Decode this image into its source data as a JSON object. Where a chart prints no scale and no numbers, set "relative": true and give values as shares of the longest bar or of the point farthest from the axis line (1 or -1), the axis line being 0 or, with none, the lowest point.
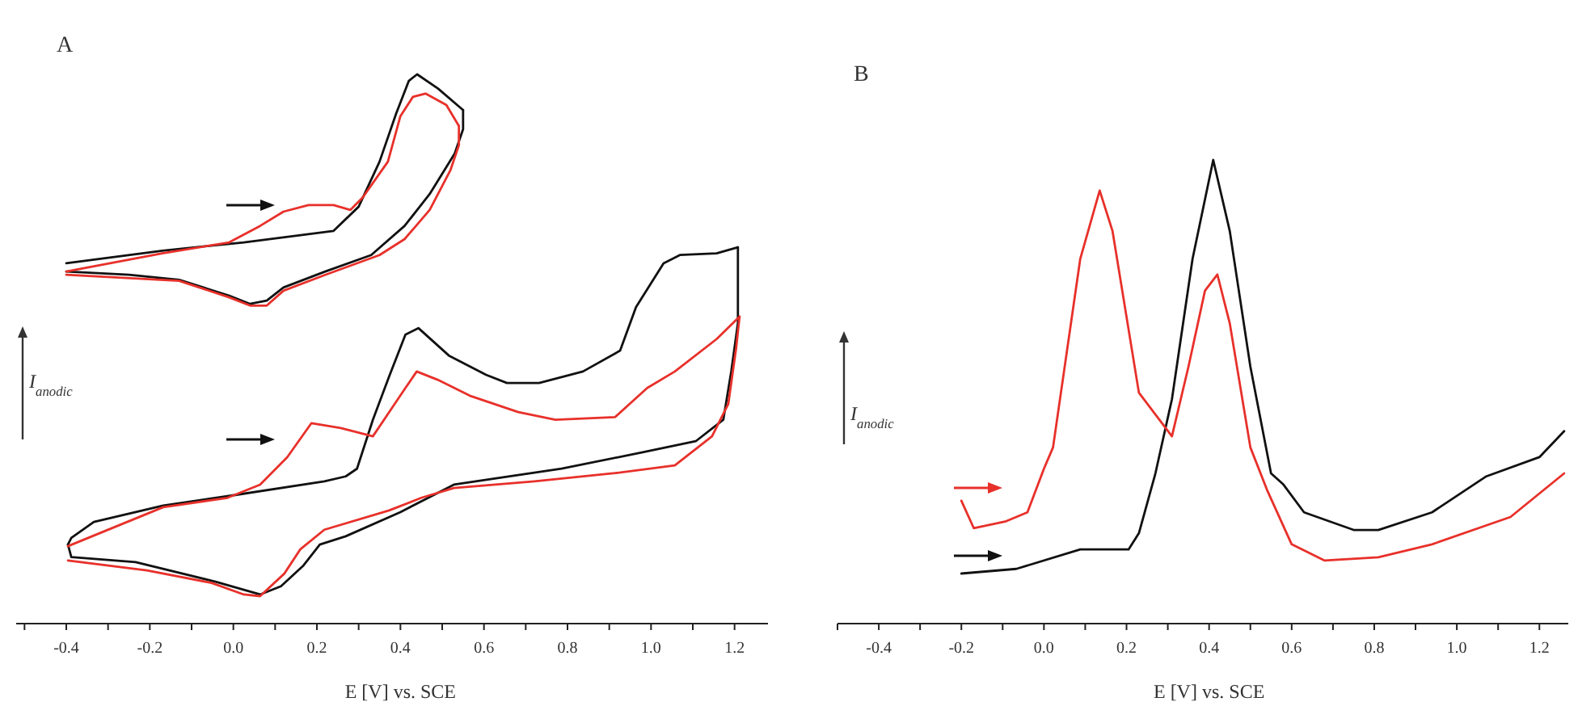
{
  "chart_data": [
    {
      "type": "line",
      "title": "A",
      "xlabel": "E [V] vs. SCE",
      "ylabel": "I$_{anodic}$",
      "relative": true,
      "xlim": [
        -0.52,
        1.28
      ],
      "xticks": [
        {
          "value": -0.5,
          "label": null
        },
        -0.4,
        {
          "value": -0.3,
          "label": null
        },
        -0.2,
        {
          "value": -0.1,
          "label": null
        },
        {
          "value": 0,
          "label": "0.0"
        },
        {
          "value": 0.1,
          "label": null
        },
        0.2,
        {
          "value": 0.3,
          "label": null
        },
        0.4,
        {
          "value": 0.5,
          "label": null
        },
        0.6,
        {
          "value": 0.7,
          "label": null
        },
        0.8,
        {
          "value": 0.9,
          "label": null
        },
        {
          "value": 1,
          "label": "1.0"
        },
        {
          "value": 1.1,
          "label": null
        },
        1.2
      ],
      "series": [
        {
          "color": "#111111",
          "x": [
            -0.4,
            -0.17,
            0.025,
            0.24,
            0.3,
            0.35,
            0.39,
            0.42,
            0.44,
            0.49,
            0.55
          ],
          "values": [
            0.656,
            0.679,
            0.694,
            0.715,
            0.759,
            0.841,
            0.929,
            0.988,
            1.0,
            0.974,
            0.935
          ]
        },
        {
          "color": "#111111",
          "x": [
            -0.4,
            -0.25,
            -0.13,
            -0.01,
            0.04,
            0.08,
            0.12,
            0.22,
            0.33,
            0.41,
            0.47,
            0.53,
            0.55,
            0.55
          ],
          "values": [
            0.641,
            0.635,
            0.626,
            0.597,
            0.582,
            0.588,
            0.612,
            0.641,
            0.671,
            0.724,
            0.782,
            0.856,
            0.9,
            0.935
          ]
        },
        {
          "color": "#e8302a",
          "x": [
            -0.4,
            -0.17,
            -0.01,
            0.064,
            0.12,
            0.18,
            0.24,
            0.28,
            0.31,
            0.37,
            0.4,
            0.43,
            0.46,
            0.51,
            0.54
          ],
          "values": [
            0.641,
            0.674,
            0.694,
            0.724,
            0.75,
            0.762,
            0.762,
            0.753,
            0.776,
            0.841,
            0.924,
            0.959,
            0.965,
            0.944,
            0.906
          ]
        },
        {
          "color": "#e8302a",
          "x": [
            -0.4,
            -0.13,
            -0.01,
            0.04,
            0.08,
            0.12,
            0.22,
            0.35,
            0.41,
            0.47,
            0.52,
            0.54,
            0.54
          ],
          "values": [
            0.635,
            0.624,
            0.594,
            0.579,
            0.579,
            0.606,
            0.635,
            0.671,
            0.7,
            0.753,
            0.826,
            0.871,
            0.906
          ]
        },
        {
          "color": "#111111",
          "x": [
            -0.396,
            -0.388,
            -0.334,
            -0.168,
            -0.014,
            0.218,
            0.269,
            0.296,
            0.334,
            0.373,
            0.412,
            0.443,
            0.516,
            0.605,
            0.655,
            0.732,
            0.837,
            0.926,
            0.964,
            1.03,
            1.069,
            1.157,
            1.208
          ],
          "values": [
            0.144,
            0.156,
            0.185,
            0.215,
            0.232,
            0.259,
            0.268,
            0.282,
            0.371,
            0.45,
            0.526,
            0.538,
            0.488,
            0.453,
            0.438,
            0.438,
            0.459,
            0.497,
            0.576,
            0.656,
            0.671,
            0.674,
            0.685
          ]
        },
        {
          "color": "#111111",
          "x": [
            -0.396,
            -0.388,
            -0.234,
            -0.041,
            0.064,
            0.114,
            0.168,
            0.207,
            0.269,
            0.4,
            0.528,
            0.786,
            0.98,
            1.107,
            1.173,
            1.192,
            1.208,
            1.208
          ],
          "values": [
            0.144,
            0.121,
            0.112,
            0.076,
            0.053,
            0.068,
            0.106,
            0.144,
            0.159,
            0.203,
            0.253,
            0.282,
            0.312,
            0.332,
            0.371,
            0.459,
            0.547,
            0.685
          ]
        },
        {
          "color": "#e8302a",
          "x": [
            -0.396,
            -0.168,
            -0.014,
            0.064,
            0.129,
            0.187,
            0.257,
            0.334,
            0.373,
            0.412,
            0.439,
            0.489,
            0.566,
            0.682,
            0.771,
            0.914,
            0.991,
            1.057,
            1.157,
            1.196,
            1.212
          ],
          "values": [
            0.141,
            0.212,
            0.229,
            0.253,
            0.303,
            0.365,
            0.356,
            0.341,
            0.385,
            0.429,
            0.459,
            0.444,
            0.415,
            0.385,
            0.371,
            0.376,
            0.429,
            0.459,
            0.518,
            0.547,
            0.559
          ]
        },
        {
          "color": "#e8302a",
          "x": [
            -0.396,
            -0.207,
            -0.052,
            0.025,
            0.064,
            0.122,
            0.16,
            0.218,
            0.373,
            0.45,
            0.528,
            0.721,
            0.914,
            1.057,
            1.146,
            1.185,
            1.204,
            1.212
          ],
          "values": [
            0.115,
            0.097,
            0.074,
            0.053,
            0.05,
            0.091,
            0.135,
            0.171,
            0.206,
            0.229,
            0.247,
            0.259,
            0.274,
            0.288,
            0.341,
            0.4,
            0.503,
            0.559
          ]
        }
      ]
    },
    {
      "type": "line",
      "title": "B",
      "xlabel": "E [V] vs. SCE",
      "ylabel": "I$_{anodic}$",
      "relative": true,
      "xlim": [
        -0.5,
        1.27
      ],
      "xticks": [
        {
          "value": -0.5,
          "label": null
        },
        -0.4,
        {
          "value": -0.3,
          "label": null
        },
        -0.2,
        {
          "value": -0.1,
          "label": null
        },
        {
          "value": 0,
          "label": "0.0"
        },
        {
          "value": 0.1,
          "label": null
        },
        0.2,
        {
          "value": 0.3,
          "label": null
        },
        0.4,
        {
          "value": 0.5,
          "label": null
        },
        0.6,
        {
          "value": 0.7,
          "label": null
        },
        0.8,
        {
          "value": 0.9,
          "label": null
        },
        {
          "value": 1,
          "label": "1.0"
        },
        {
          "value": 1.1,
          "label": null
        },
        1.2
      ],
      "series": [
        {
          "color": "#111111",
          "x": [
            -0.2,
            -0.067,
            0.088,
            0.205,
            0.23,
            0.27,
            0.31,
            0.36,
            0.41,
            0.45,
            0.5,
            0.55,
            0.58,
            0.63,
            0.75,
            0.81,
            0.94,
            1.07,
            1.2,
            1.26
          ],
          "values": [
            0.108,
            0.118,
            0.16,
            0.16,
            0.195,
            0.324,
            0.484,
            0.787,
            1.0,
            0.847,
            0.554,
            0.324,
            0.3,
            0.24,
            0.202,
            0.202,
            0.24,
            0.317,
            0.359,
            0.415
          ]
        },
        {
          "color": "#e8302a",
          "x": [
            -0.2,
            -0.17,
            -0.094,
            -0.04,
            0.0,
            0.022,
            0.088,
            0.135,
            0.166,
            0.23,
            0.31,
            0.35,
            0.39,
            0.42,
            0.45,
            0.5,
            0.54,
            0.6,
            0.68,
            0.81,
            0.94,
            1.13,
            1.26
          ],
          "values": [
            0.265,
            0.206,
            0.22,
            0.24,
            0.334,
            0.38,
            0.787,
            0.934,
            0.847,
            0.498,
            0.404,
            0.554,
            0.718,
            0.753,
            0.648,
            0.38,
            0.289,
            0.171,
            0.136,
            0.143,
            0.171,
            0.23,
            0.324
          ]
        }
      ]
    }
  ]
}
